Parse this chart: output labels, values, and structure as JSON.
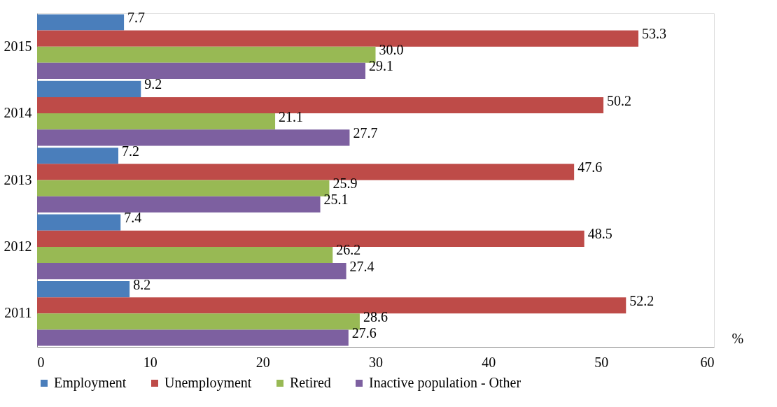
{
  "chart_data": {
    "type": "bar",
    "orientation": "horizontal",
    "xlabel": "%",
    "categories": [
      "2015",
      "2014",
      "2013",
      "2012",
      "2011"
    ],
    "series": [
      {
        "name": "Employment",
        "color": "#4a7ebb",
        "values": [
          7.7,
          9.2,
          7.2,
          7.4,
          8.2
        ],
        "value_labels": [
          "7.7",
          "9.2",
          "7.2",
          "7.4",
          "8.2"
        ]
      },
      {
        "name": "Unemployment",
        "color": "#be4b48",
        "values": [
          53.3,
          50.2,
          47.6,
          48.5,
          52.2
        ],
        "value_labels": [
          "53.3",
          "50.2",
          "47.6",
          "48.5",
          "52.2"
        ]
      },
      {
        "name": "Retired",
        "color": "#98b954",
        "values": [
          30.0,
          21.1,
          25.9,
          26.2,
          28.6
        ],
        "value_labels": [
          "30.0",
          "21.1",
          "25.9",
          "26.2",
          "28.6"
        ]
      },
      {
        "name": "Inactive population - Other",
        "color": "#7d60a0",
        "values": [
          29.1,
          27.7,
          25.1,
          27.4,
          27.6
        ],
        "value_labels": [
          "29.1",
          "27.7",
          "25.1",
          "27.4",
          "27.6"
        ]
      }
    ],
    "xlim": [
      0,
      60
    ],
    "xticks": [
      0,
      10,
      20,
      30,
      40,
      50,
      60
    ],
    "grid": false,
    "legend": "bottom"
  }
}
